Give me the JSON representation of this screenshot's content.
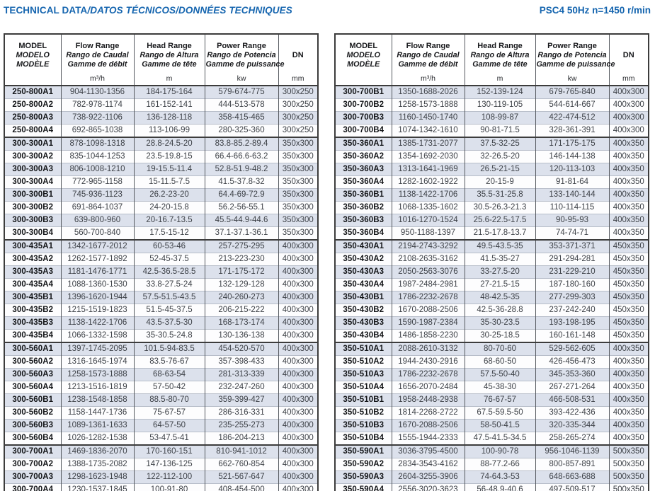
{
  "header": {
    "title_normal": "TECHNICAL DATA",
    "title_italic": "/DATOS TÉCNICOS/DONNÉES TECHNIQUES",
    "title_right": "PSC4 50Hz n=1450 r/min"
  },
  "colors": {
    "accent_blue": "#1565af",
    "row_alt": "#dce1ec",
    "border_dark": "#3c3c3c"
  },
  "columns": {
    "model": {
      "lines": [
        "MODEL",
        "MODELO",
        "MODÈLE"
      ],
      "unit": ""
    },
    "flow": {
      "lines": [
        "Flow Range",
        "Rango de Caudal",
        "Gamme de débit"
      ],
      "unit": "m³/h"
    },
    "head": {
      "lines": [
        "Head Range",
        "Rango de Altura",
        "Gamme de tête"
      ],
      "unit": "m"
    },
    "power": {
      "lines": [
        "Power Range",
        "Rango de Potencia",
        "Gamme de puissance"
      ],
      "unit": "kw"
    },
    "dn": {
      "lines": [
        "DN"
      ],
      "unit": "mm"
    }
  },
  "tables": [
    {
      "name": "left",
      "rows": [
        {
          "model": "250-800A1",
          "flow": "904-1130-1356",
          "head": "184-175-164",
          "power": "579-674-775",
          "dn": "300x250",
          "group_start": true
        },
        {
          "model": "250-800A2",
          "flow": "782-978-1174",
          "head": "161-152-141",
          "power": "444-513-578",
          "dn": "300x250",
          "group_start": false
        },
        {
          "model": "250-800A3",
          "flow": "738-922-1106",
          "head": "136-128-118",
          "power": "358-415-465",
          "dn": "300x250",
          "group_start": false
        },
        {
          "model": "250-800A4",
          "flow": "692-865-1038",
          "head": "113-106-99",
          "power": "280-325-360",
          "dn": "300x250",
          "group_start": false
        },
        {
          "model": "300-300A1",
          "flow": "878-1098-1318",
          "head": "28.8-24.5-20",
          "power": "83.8-85.2-89.4",
          "dn": "350x300",
          "group_start": true
        },
        {
          "model": "300-300A2",
          "flow": "835-1044-1253",
          "head": "23.5-19.8-15",
          "power": "66.4-66.6-63.2",
          "dn": "350x300",
          "group_start": false
        },
        {
          "model": "300-300A3",
          "flow": "806-1008-1210",
          "head": "19-15.5-11.4",
          "power": "52.8-51.9-48.2",
          "dn": "350x300",
          "group_start": false
        },
        {
          "model": "300-300A4",
          "flow": "772-965-1158",
          "head": "15-11.5-7.5",
          "power": "41.5-37.8-32",
          "dn": "350x300",
          "group_start": false
        },
        {
          "model": "300-300B1",
          "flow": "745-936-1123",
          "head": "26.2-23-20",
          "power": "64.4-69-72.9",
          "dn": "350x300",
          "group_start": false
        },
        {
          "model": "300-300B2",
          "flow": "691-864-1037",
          "head": "24-20-15.8",
          "power": "56.2-56-55.1",
          "dn": "350x300",
          "group_start": false
        },
        {
          "model": "300-300B3",
          "flow": "639-800-960",
          "head": "20-16.7-13.5",
          "power": "45.5-44.9-44.6",
          "dn": "350x300",
          "group_start": false
        },
        {
          "model": "300-300B4",
          "flow": "560-700-840",
          "head": "17.5-15-12",
          "power": "37.1-37.1-36.1",
          "dn": "350x300",
          "group_start": false
        },
        {
          "model": "300-435A1",
          "flow": "1342-1677-2012",
          "head": "60-53-46",
          "power": "257-275-295",
          "dn": "400x300",
          "group_start": true
        },
        {
          "model": "300-435A2",
          "flow": "1262-1577-1892",
          "head": "52-45-37.5",
          "power": "213-223-230",
          "dn": "400x300",
          "group_start": false
        },
        {
          "model": "300-435A3",
          "flow": "1181-1476-1771",
          "head": "42.5-36.5-28.5",
          "power": "171-175-172",
          "dn": "400x300",
          "group_start": false
        },
        {
          "model": "300-435A4",
          "flow": "1088-1360-1530",
          "head": "33.8-27.5-24",
          "power": "132-129-128",
          "dn": "400x300",
          "group_start": false
        },
        {
          "model": "300-435B1",
          "flow": "1396-1620-1944",
          "head": "57.5-51.5-43.5",
          "power": "240-260-273",
          "dn": "400x300",
          "group_start": false
        },
        {
          "model": "300-435B2",
          "flow": "1215-1519-1823",
          "head": "51.5-45-37.5",
          "power": "206-215-222",
          "dn": "400x300",
          "group_start": false
        },
        {
          "model": "300-435B3",
          "flow": "1138-1422-1706",
          "head": "43.5-37.5-30",
          "power": "168-173-174",
          "dn": "400x300",
          "group_start": false
        },
        {
          "model": "300-435B4",
          "flow": "1066-1332-1598",
          "head": "35-30.5-24.8",
          "power": "130-136-138",
          "dn": "400x300",
          "group_start": false
        },
        {
          "model": "300-560A1",
          "flow": "1397-1745-2095",
          "head": "101.5-94-83.5",
          "power": "454-520-570",
          "dn": "400x300",
          "group_start": true
        },
        {
          "model": "300-560A2",
          "flow": "1316-1645-1974",
          "head": "83.5-76-67",
          "power": "357-398-433",
          "dn": "400x300",
          "group_start": false
        },
        {
          "model": "300-560A3",
          "flow": "1258-1573-1888",
          "head": "68-63-54",
          "power": "281-313-339",
          "dn": "400x300",
          "group_start": false
        },
        {
          "model": "300-560A4",
          "flow": "1213-1516-1819",
          "head": "57-50-42",
          "power": "232-247-260",
          "dn": "400x300",
          "group_start": false
        },
        {
          "model": "300-560B1",
          "flow": "1238-1548-1858",
          "head": "88.5-80-70",
          "power": "359-399-427",
          "dn": "400x300",
          "group_start": false
        },
        {
          "model": "300-560B2",
          "flow": "1158-1447-1736",
          "head": "75-67-57",
          "power": "286-316-331",
          "dn": "400x300",
          "group_start": false
        },
        {
          "model": "300-560B3",
          "flow": "1089-1361-1633",
          "head": "64-57-50",
          "power": "235-255-273",
          "dn": "400x300",
          "group_start": false
        },
        {
          "model": "300-560B4",
          "flow": "1026-1282-1538",
          "head": "53-47.5-41",
          "power": "186-204-213",
          "dn": "400x300",
          "group_start": false
        },
        {
          "model": "300-700A1",
          "flow": "1469-1836-2070",
          "head": "170-160-151",
          "power": "810-941-1012",
          "dn": "400x300",
          "group_start": true
        },
        {
          "model": "300-700A2",
          "flow": "1388-1735-2082",
          "head": "147-136-125",
          "power": "662-760-854",
          "dn": "400x300",
          "group_start": false
        },
        {
          "model": "300-700A3",
          "flow": "1298-1623-1948",
          "head": "122-112-100",
          "power": "521-567-647",
          "dn": "400x300",
          "group_start": false
        },
        {
          "model": "300-700A4",
          "flow": "1230-1537-1845",
          "head": "100-91-80",
          "power": "408-454-500",
          "dn": "400x300",
          "group_start": false
        }
      ]
    },
    {
      "name": "right",
      "rows": [
        {
          "model": "300-700B1",
          "flow": "1350-1688-2026",
          "head": "152-139-124",
          "power": "679-765-840",
          "dn": "400x300",
          "group_start": true
        },
        {
          "model": "300-700B2",
          "flow": "1258-1573-1888",
          "head": "130-119-105",
          "power": "544-614-667",
          "dn": "400x300",
          "group_start": false
        },
        {
          "model": "300-700B3",
          "flow": "1160-1450-1740",
          "head": "108-99-87",
          "power": "422-474-512",
          "dn": "400x300",
          "group_start": false
        },
        {
          "model": "300-700B4",
          "flow": "1074-1342-1610",
          "head": "90-81-71.5",
          "power": "328-361-391",
          "dn": "400x300",
          "group_start": false
        },
        {
          "model": "350-360A1",
          "flow": "1385-1731-2077",
          "head": "37.5-32-25",
          "power": "171-175-175",
          "dn": "400x350",
          "group_start": true
        },
        {
          "model": "350-360A2",
          "flow": "1354-1692-2030",
          "head": "32-26.5-20",
          "power": "146-144-138",
          "dn": "400x350",
          "group_start": false
        },
        {
          "model": "350-360A3",
          "flow": "1313-1641-1969",
          "head": "26.5-21-15",
          "power": "120-113-103",
          "dn": "400x350",
          "group_start": false
        },
        {
          "model": "350-360A4",
          "flow": "1282-1602-1922",
          "head": "20-15-9",
          "power": "91-81-64",
          "dn": "400x350",
          "group_start": false
        },
        {
          "model": "350-360B1",
          "flow": "1138-1422-1706",
          "head": "35.5-31-25.8",
          "power": "133-140-144",
          "dn": "400x350",
          "group_start": false
        },
        {
          "model": "350-360B2",
          "flow": "1068-1335-1602",
          "head": "30.5-26.3-21.3",
          "power": "110-114-115",
          "dn": "400x350",
          "group_start": false
        },
        {
          "model": "350-360B3",
          "flow": "1016-1270-1524",
          "head": "25.6-22.5-17.5",
          "power": "90-95-93",
          "dn": "400x350",
          "group_start": false
        },
        {
          "model": "350-360B4",
          "flow": "950-1188-1397",
          "head": "21.5-17.8-13.7",
          "power": "74-74-71",
          "dn": "400x350",
          "group_start": false
        },
        {
          "model": "350-430A1",
          "flow": "2194-2743-3292",
          "head": "49.5-43.5-35",
          "power": "353-371-371",
          "dn": "450x350",
          "group_start": true
        },
        {
          "model": "350-430A2",
          "flow": "2108-2635-3162",
          "head": "41.5-35-27",
          "power": "291-294-281",
          "dn": "450x350",
          "group_start": false
        },
        {
          "model": "350-430A3",
          "flow": "2050-2563-3076",
          "head": "33-27.5-20",
          "power": "231-229-210",
          "dn": "450x350",
          "group_start": false
        },
        {
          "model": "350-430A4",
          "flow": "1987-2484-2981",
          "head": "27-21.5-15",
          "power": "187-180-160",
          "dn": "450x350",
          "group_start": false
        },
        {
          "model": "350-430B1",
          "flow": "1786-2232-2678",
          "head": "48-42.5-35",
          "power": "277-299-303",
          "dn": "450x350",
          "group_start": false
        },
        {
          "model": "350-430B2",
          "flow": "1670-2088-2506",
          "head": "42.5-36-28.8",
          "power": "237-242-240",
          "dn": "450x350",
          "group_start": false
        },
        {
          "model": "350-430B3",
          "flow": "1590-1987-2384",
          "head": "35-30-23.5",
          "power": "193-198-195",
          "dn": "450x350",
          "group_start": false
        },
        {
          "model": "350-430B4",
          "flow": "1486-1858-2230",
          "head": "30-25-18.5",
          "power": "160-161-148",
          "dn": "450x350",
          "group_start": false
        },
        {
          "model": "350-510A1",
          "flow": "2088-2610-3132",
          "head": "80-70-60",
          "power": "529-562-605",
          "dn": "400x350",
          "group_start": true
        },
        {
          "model": "350-510A2",
          "flow": "1944-2430-2916",
          "head": "68-60-50",
          "power": "426-456-473",
          "dn": "400x350",
          "group_start": false
        },
        {
          "model": "350-510A3",
          "flow": "1786-2232-2678",
          "head": "57.5-50-40",
          "power": "345-353-360",
          "dn": "400x350",
          "group_start": false
        },
        {
          "model": "350-510A4",
          "flow": "1656-2070-2484",
          "head": "45-38-30",
          "power": "267-271-264",
          "dn": "400x350",
          "group_start": false
        },
        {
          "model": "350-510B1",
          "flow": "1958-2448-2938",
          "head": "76-67-57",
          "power": "466-508-531",
          "dn": "400x350",
          "group_start": false
        },
        {
          "model": "350-510B2",
          "flow": "1814-2268-2722",
          "head": "67.5-59.5-50",
          "power": "393-422-436",
          "dn": "400x350",
          "group_start": false
        },
        {
          "model": "350-510B3",
          "flow": "1670-2088-2506",
          "head": "58-50-41.5",
          "power": "320-335-344",
          "dn": "400x350",
          "group_start": false
        },
        {
          "model": "350-510B4",
          "flow": "1555-1944-2333",
          "head": "47.5-41.5-34.5",
          "power": "258-265-274",
          "dn": "400x350",
          "group_start": false
        },
        {
          "model": "350-590A1",
          "flow": "3036-3795-4500",
          "head": "100-90-78",
          "power": "956-1046-1139",
          "dn": "500x350",
          "group_start": true
        },
        {
          "model": "350-590A2",
          "flow": "2834-3543-4162",
          "head": "88-77.2-66",
          "power": "800-857-891",
          "dn": "500x350",
          "group_start": false
        },
        {
          "model": "350-590A3",
          "flow": "2604-3255-3906",
          "head": "74-64.3-53",
          "power": "648-663-688",
          "dn": "500x350",
          "group_start": false
        },
        {
          "model": "350-590A4",
          "flow": "2556-3020-3623",
          "head": "56-48.9-40.6",
          "power": "497-509-517",
          "dn": "500x350",
          "group_start": false
        }
      ]
    }
  ]
}
